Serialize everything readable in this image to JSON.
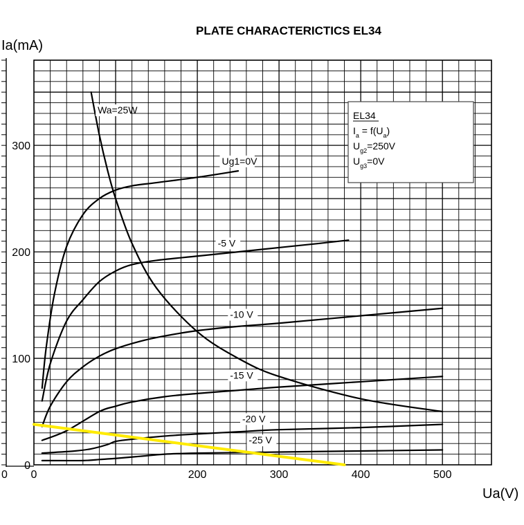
{
  "chart_data": {
    "type": "line",
    "title": "PLATE CHARACTERICTICS   EL34",
    "xlabel": "Ua(V)",
    "ylabel": "Ia(mA)",
    "xlim": [
      0,
      560
    ],
    "ylim": [
      0,
      380
    ],
    "x_ticks": [
      {
        "value": 0,
        "label": "0"
      },
      {
        "value": 200,
        "label": "200"
      },
      {
        "value": 300,
        "label": "300"
      },
      {
        "value": 400,
        "label": "400"
      },
      {
        "value": 500,
        "label": "500"
      }
    ],
    "y_ticks": [
      {
        "value": 0,
        "label": "0"
      },
      {
        "value": 100,
        "label": "100"
      },
      {
        "value": 200,
        "label": "200"
      },
      {
        "value": 300,
        "label": "300"
      }
    ],
    "origin_x_label": "0",
    "grid": true,
    "series": [
      {
        "name": "Ug1=0V",
        "color": "#000000",
        "x": [
          10,
          15,
          25,
          40,
          60,
          80,
          100,
          120,
          150,
          200,
          250
        ],
        "y": [
          72,
          110,
          160,
          205,
          235,
          250,
          258,
          262,
          265,
          270,
          276
        ],
        "label_at": [
          230,
          282
        ]
      },
      {
        "name": "-5 V",
        "color": "#000000",
        "x": [
          10,
          20,
          40,
          60,
          80,
          100,
          120,
          150,
          200,
          250,
          300,
          350,
          385
        ],
        "y": [
          60,
          95,
          135,
          155,
          172,
          182,
          188,
          192,
          196,
          200,
          204,
          208,
          211
        ],
        "label_at": [
          225,
          205
        ]
      },
      {
        "name": "-10 V",
        "color": "#000000",
        "x": [
          10,
          20,
          40,
          60,
          80,
          100,
          130,
          160,
          200,
          250,
          300,
          400,
          500
        ],
        "y": [
          36,
          55,
          78,
          92,
          102,
          109,
          116,
          121,
          126,
          130,
          133,
          140,
          147
        ],
        "label_at": [
          240,
          138
        ]
      },
      {
        "name": "-15 V",
        "color": "#000000",
        "x": [
          10,
          40,
          80,
          100,
          120,
          160,
          200,
          250,
          300,
          400,
          500
        ],
        "y": [
          23,
          32,
          50,
          55,
          59,
          64,
          67,
          70,
          73,
          78,
          83
        ],
        "label_at": [
          240,
          81
        ]
      },
      {
        "name": "-20 V",
        "color": "#000000",
        "x": [
          10,
          50,
          70,
          90,
          100,
          120,
          160,
          200,
          250,
          300,
          400,
          500
        ],
        "y": [
          11,
          13,
          15,
          19,
          22,
          24,
          27,
          29,
          31,
          33,
          35,
          38
        ],
        "label_at": [
          255,
          40
        ]
      },
      {
        "name": "-25 V",
        "color": "#000000",
        "x": [
          10,
          60,
          80,
          100,
          130,
          160,
          200,
          300,
          400,
          500
        ],
        "y": [
          4,
          4,
          5,
          6,
          8,
          10,
          11,
          12,
          13,
          14
        ],
        "label_at": [
          263,
          20
        ]
      },
      {
        "name": "Wa=25W",
        "color": "#000000",
        "x": [
          70,
          80,
          90,
          100,
          120,
          150,
          200,
          250,
          300,
          400,
          500
        ],
        "y": [
          350,
          310,
          277,
          250,
          208,
          166,
          125,
          100,
          83,
          62,
          50
        ],
        "label_at": [
          78,
          330
        ]
      },
      {
        "name": "",
        "color": "#ffeb00",
        "x": [
          0,
          380
        ],
        "y": [
          38,
          0
        ]
      }
    ],
    "legend_box": {
      "lines": [
        {
          "main": "EL34",
          "sub": "",
          "rest": ""
        },
        {
          "main": "I",
          "sub": "a",
          "rest": " = f(U",
          "sub2": "a",
          "rest2": ")"
        },
        {
          "main": "U",
          "sub": "g2",
          "rest": "=250V"
        },
        {
          "main": "U",
          "sub": "g3",
          "rest": "=0V"
        }
      ],
      "placement": "top-right"
    }
  }
}
